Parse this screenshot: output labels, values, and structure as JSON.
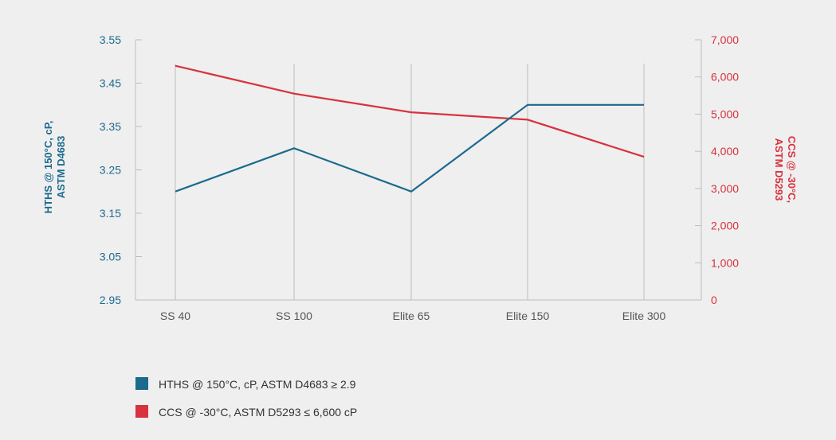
{
  "chart_data": {
    "type": "line",
    "categories": [
      "SS 40",
      "SS 100",
      "Elite 65",
      "Elite 150",
      "Elite 300"
    ],
    "series": [
      {
        "name": "HTHS @ 150°C, cP, ASTM D4683 ≥ 2.9",
        "axis": "left",
        "color": "#1c6a8e",
        "values": [
          3.2,
          3.3,
          3.2,
          3.4,
          3.4
        ]
      },
      {
        "name": "CCS @ -30°C, ASTM D5293 ≤ 6,600 cP",
        "axis": "right",
        "color": "#d8323e",
        "values": [
          6300,
          5550,
          5050,
          4850,
          3850
        ]
      }
    ],
    "left_axis": {
      "label_line1": "HTHS @ 150°C, cP,",
      "label_line2": "ASTM D4683",
      "ylim": [
        2.95,
        3.55
      ],
      "ticks": [
        {
          "value": 2.95,
          "label": "2.95"
        },
        {
          "value": 3.05,
          "label": "3.05"
        },
        {
          "value": 3.15,
          "label": "3.15"
        },
        {
          "value": 3.25,
          "label": "3.25"
        },
        {
          "value": 3.35,
          "label": "3.35"
        },
        {
          "value": 3.45,
          "label": "3.45"
        },
        {
          "value": 3.55,
          "label": "3.55"
        }
      ]
    },
    "right_axis": {
      "label_line1": "CCS @ -30°C,",
      "label_line2": "ASTM D5293",
      "ylim": [
        0,
        7000
      ],
      "ticks": [
        {
          "value": 0,
          "label": "0"
        },
        {
          "value": 1000,
          "label": "1,000"
        },
        {
          "value": 2000,
          "label": "2,000"
        },
        {
          "value": 3000,
          "label": "3,000"
        },
        {
          "value": 4000,
          "label": "4,000"
        },
        {
          "value": 5000,
          "label": "5,000"
        },
        {
          "value": 6000,
          "label": "6,000"
        },
        {
          "value": 7000,
          "label": "7,000"
        }
      ]
    },
    "grid": "vertical",
    "legend_position": "bottom-left"
  }
}
